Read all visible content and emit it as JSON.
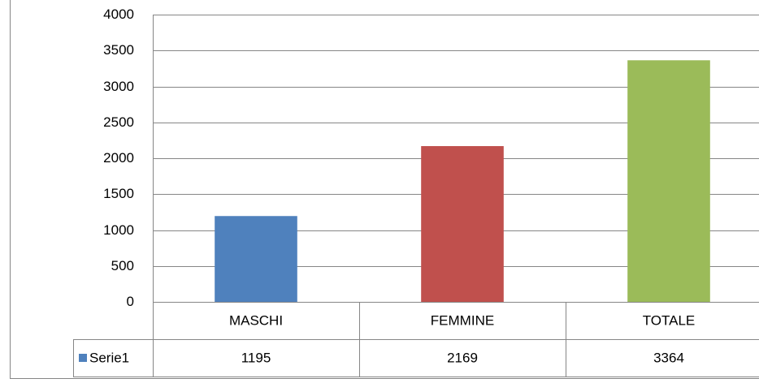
{
  "chart_data": {
    "type": "bar",
    "categories": [
      "MASCHI",
      "FEMMINE",
      "TOTALE"
    ],
    "series": [
      {
        "name": "Serie1",
        "color": "#4f81bd",
        "point_colors": [
          "#4f81bd",
          "#c0504d",
          "#9bbb59"
        ],
        "values": [
          1195,
          2169,
          3364
        ]
      }
    ],
    "ylim": [
      0,
      4000
    ],
    "yticks": [
      0,
      500,
      1000,
      1500,
      2000,
      2500,
      3000,
      3500,
      4000
    ],
    "grid": true,
    "data_table": true
  }
}
